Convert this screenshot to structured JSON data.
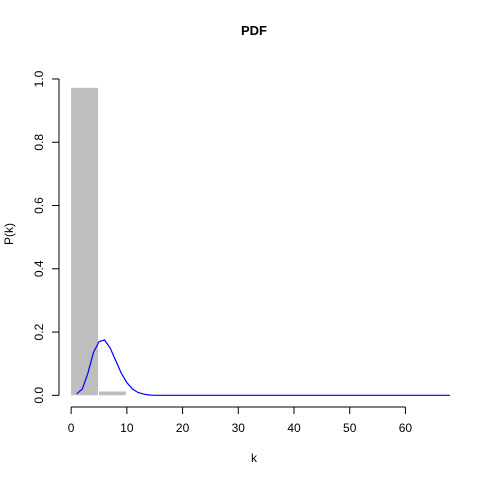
{
  "chart_data": {
    "type": "bar",
    "title": "PDF",
    "xlabel": "k",
    "ylabel": "P(k)",
    "xlim": [
      -2,
      68
    ],
    "ylim": [
      -0.04,
      1.06
    ],
    "x_ticks": [
      0,
      10,
      20,
      30,
      40,
      50,
      60
    ],
    "y_ticks": [
      0.0,
      0.2,
      0.4,
      0.6,
      0.8,
      1.0
    ],
    "y_tick_labels": [
      "0.0",
      "0.2",
      "0.4",
      "0.6",
      "0.8",
      "1.0"
    ],
    "grid": false,
    "histogram": {
      "color": "#bebebe",
      "bins": [
        {
          "x0": 0,
          "x1": 5,
          "value": 0.972
        },
        {
          "x0": 5,
          "x1": 10,
          "value": 0.012
        },
        {
          "x0": 10,
          "x1": 15,
          "value": 0.0
        }
      ]
    },
    "curve": {
      "color": "#0000ff",
      "x": [
        1,
        2,
        3,
        4,
        5,
        6,
        7,
        8,
        9,
        10,
        11,
        12,
        13,
        14,
        15,
        20,
        30,
        40,
        50,
        60,
        68
      ],
      "y": [
        0.005,
        0.02,
        0.07,
        0.135,
        0.17,
        0.175,
        0.15,
        0.11,
        0.07,
        0.04,
        0.02,
        0.009,
        0.004,
        0.001,
        0.0,
        0.0,
        0.0,
        0.0,
        0.0,
        0.0,
        0.0
      ]
    }
  }
}
